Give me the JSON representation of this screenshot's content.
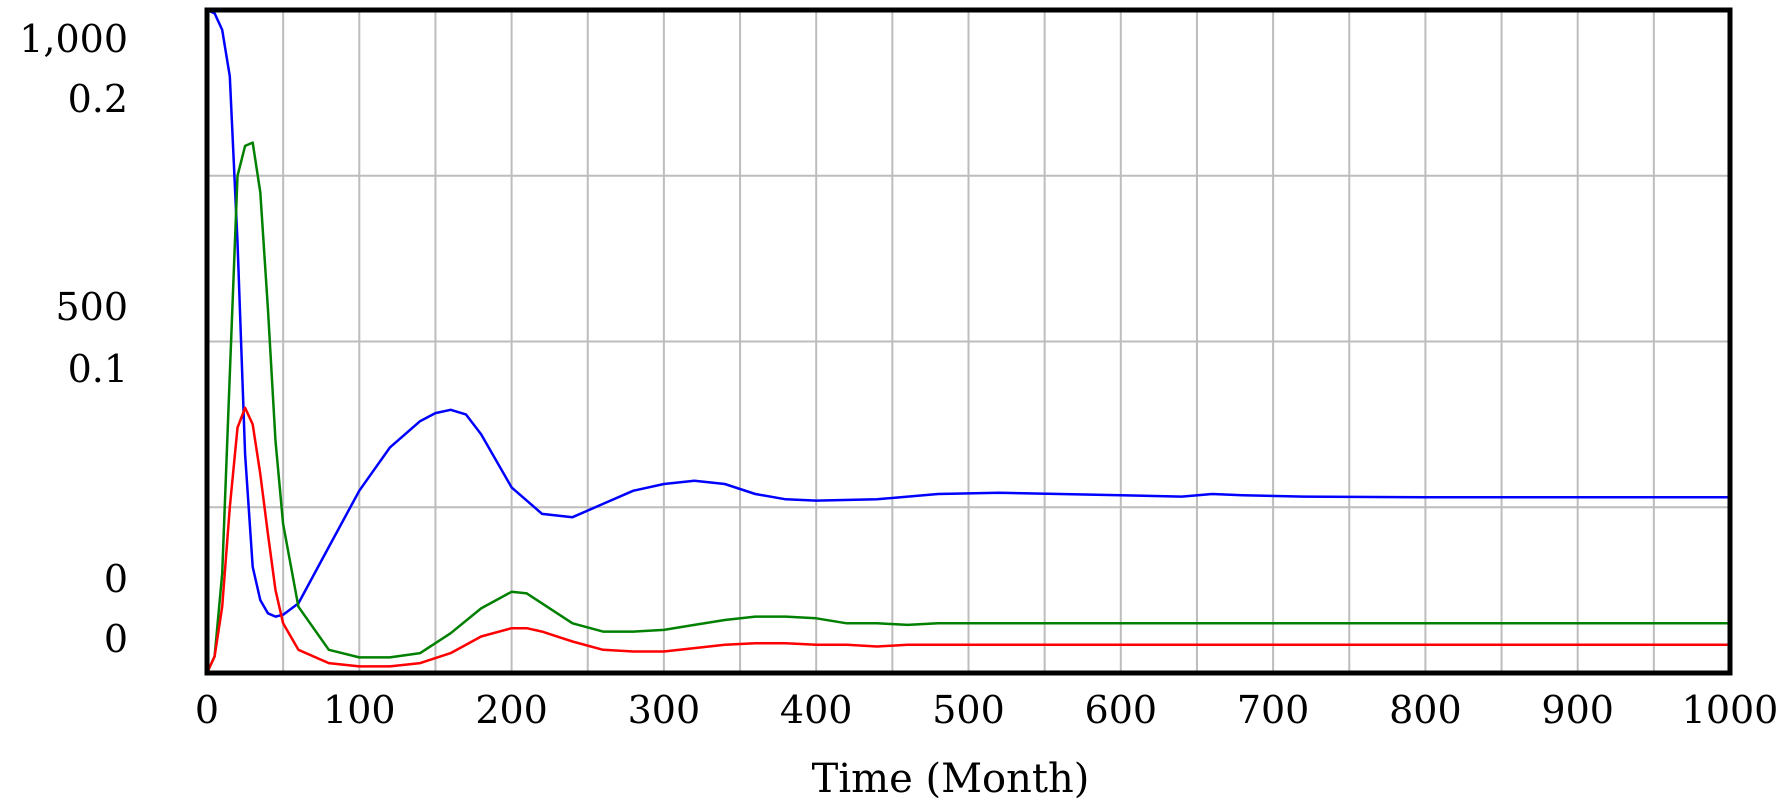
{
  "chart_data": {
    "type": "line",
    "title": "",
    "xlabel": "Time (Month)",
    "ylabel": "",
    "xlim": [
      0,
      1000
    ],
    "x_ticks": [
      "0",
      "100",
      "200",
      "300",
      "400",
      "500",
      "600",
      "700",
      "800",
      "900",
      "1000"
    ],
    "y_axes": [
      {
        "ticks": [
          "1,000",
          "500",
          "0"
        ],
        "range": [
          0,
          1000
        ],
        "series_color": "#0000ff"
      },
      {
        "ticks": [
          "0.2",
          "0.1",
          "0"
        ],
        "range": [
          0,
          0.2
        ],
        "series_color": "#008000"
      }
    ],
    "grid": true,
    "legend": "none",
    "series": [
      {
        "color": "#0000ff",
        "axis": 0,
        "x": [
          0,
          5,
          10,
          15,
          20,
          25,
          30,
          35,
          40,
          45,
          50,
          60,
          80,
          100,
          120,
          140,
          150,
          160,
          170,
          180,
          200,
          220,
          240,
          260,
          280,
          300,
          320,
          340,
          360,
          380,
          400,
          440,
          480,
          520,
          560,
          600,
          640,
          660,
          680,
          720,
          800,
          900,
          1000
        ],
        "y": [
          1000,
          995,
          970,
          900,
          650,
          330,
          160,
          110,
          90,
          85,
          88,
          105,
          190,
          275,
          340,
          380,
          392,
          397,
          390,
          360,
          280,
          240,
          235,
          255,
          275,
          285,
          290,
          285,
          270,
          262,
          260,
          262,
          270,
          272,
          270,
          268,
          266,
          270,
          268,
          266,
          265,
          265,
          265
        ]
      },
      {
        "color": "#008000",
        "axis": 1,
        "x": [
          0,
          5,
          10,
          15,
          20,
          25,
          30,
          35,
          40,
          45,
          50,
          60,
          80,
          100,
          120,
          140,
          160,
          180,
          200,
          210,
          220,
          240,
          260,
          280,
          300,
          320,
          340,
          360,
          380,
          400,
          420,
          440,
          460,
          480,
          500,
          600,
          700,
          800,
          900,
          1000
        ],
        "y": [
          0.0,
          0.005,
          0.03,
          0.09,
          0.15,
          0.159,
          0.16,
          0.145,
          0.11,
          0.07,
          0.045,
          0.02,
          0.007,
          0.0047,
          0.0047,
          0.006,
          0.012,
          0.0195,
          0.0245,
          0.024,
          0.021,
          0.015,
          0.0125,
          0.0125,
          0.013,
          0.0145,
          0.016,
          0.017,
          0.017,
          0.0165,
          0.015,
          0.015,
          0.0145,
          0.015,
          0.015,
          0.015,
          0.015,
          0.015,
          0.015,
          0.015
        ]
      },
      {
        "color": "#ff0000",
        "x": [
          0,
          5,
          10,
          15,
          20,
          25,
          30,
          35,
          40,
          45,
          50,
          60,
          80,
          100,
          120,
          140,
          160,
          180,
          200,
          210,
          220,
          240,
          260,
          280,
          300,
          320,
          340,
          360,
          380,
          400,
          420,
          440,
          460,
          480,
          500,
          600,
          700,
          800,
          900,
          1000
        ],
        "y": [
          0.0,
          0.005,
          0.02,
          0.05,
          0.074,
          0.08,
          0.075,
          0.06,
          0.042,
          0.025,
          0.015,
          0.007,
          0.003,
          0.002,
          0.002,
          0.003,
          0.006,
          0.011,
          0.0135,
          0.0135,
          0.0125,
          0.0095,
          0.007,
          0.0065,
          0.0065,
          0.0075,
          0.0085,
          0.009,
          0.009,
          0.0085,
          0.0085,
          0.008,
          0.0085,
          0.0085,
          0.0085,
          0.0085,
          0.0085,
          0.0085,
          0.0085,
          0.0085
        ]
      }
    ]
  }
}
